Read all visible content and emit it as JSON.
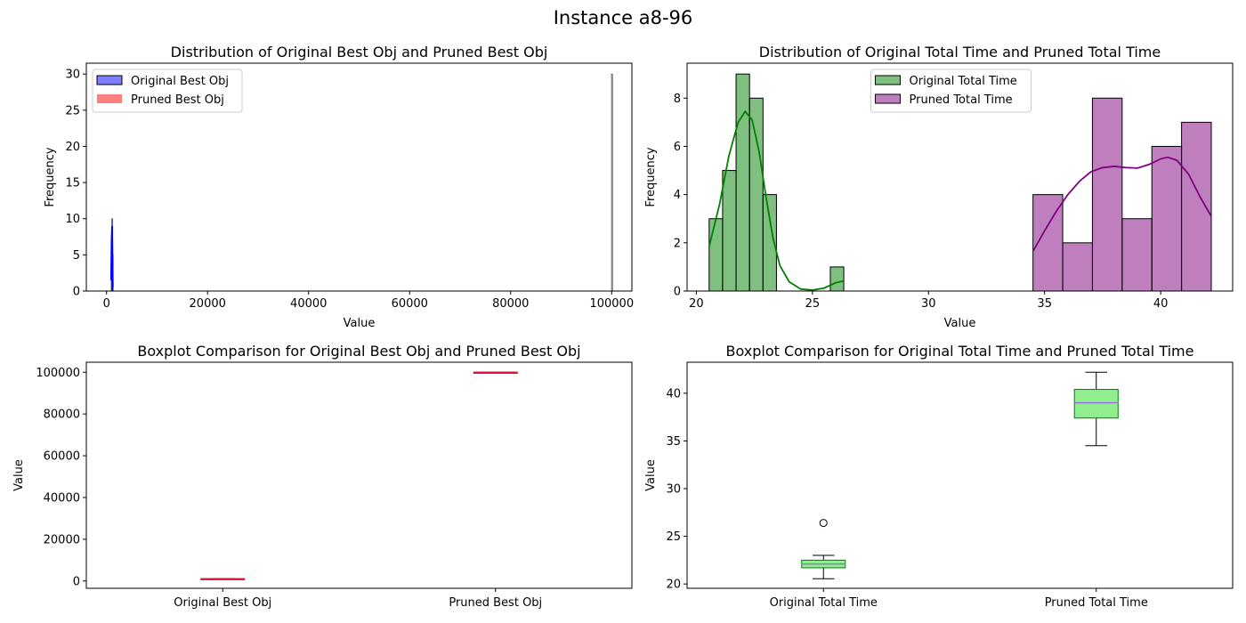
{
  "figure": {
    "title": "Instance a8-96"
  },
  "chart_data": [
    {
      "id": "hist_obj",
      "type": "bar",
      "subtype": "histogram",
      "title": "Distribution of Original Best Obj and Pruned Best Obj",
      "xlabel": "Value",
      "ylabel": "Frequency",
      "xlim": [
        -4000,
        104000
      ],
      "ylim": [
        0,
        31.5
      ],
      "xticks": [
        0,
        20000,
        40000,
        60000,
        80000,
        100000
      ],
      "xtick_labels": [
        "0",
        "20000",
        "40000",
        "60000",
        "80000",
        "100000"
      ],
      "yticks": [
        0,
        5,
        10,
        15,
        20,
        25,
        30
      ],
      "ytick_labels": [
        "0",
        "5",
        "10",
        "15",
        "20",
        "25",
        "30"
      ],
      "legend_position": "upper-left",
      "series": [
        {
          "name": "Original Best Obj",
          "color": "#0000ff",
          "alpha": 0.5,
          "bins": [
            {
              "x0": 920,
              "x1": 1020,
              "count": 7
            },
            {
              "x0": 1020,
              "x1": 1120,
              "count": 10
            },
            {
              "x0": 1120,
              "x1": 1220,
              "count": 5
            }
          ],
          "kde": [
            [
              900,
              1.5
            ],
            [
              1000,
              7
            ],
            [
              1100,
              9
            ],
            [
              1200,
              4
            ],
            [
              1250,
              0.5
            ]
          ]
        },
        {
          "name": "Pruned Best Obj",
          "color": "#ff0000",
          "alpha": 0.5,
          "bins": [
            {
              "x0": 99950,
              "x1": 100050,
              "count": 30
            }
          ],
          "kde": []
        }
      ]
    },
    {
      "id": "hist_time",
      "type": "bar",
      "subtype": "histogram",
      "title": "Distribution of Original Total Time and Pruned Total Time",
      "xlabel": "Value",
      "ylabel": "Frequency",
      "xlim": [
        19.6,
        43.1
      ],
      "ylim": [
        0,
        9.45
      ],
      "xticks": [
        20,
        25,
        30,
        35,
        40
      ],
      "xtick_labels": [
        "20",
        "25",
        "30",
        "35",
        "40"
      ],
      "yticks": [
        0,
        2,
        4,
        6,
        8
      ],
      "ytick_labels": [
        "0",
        "2",
        "4",
        "6",
        "8"
      ],
      "legend_position": "upper-center",
      "series": [
        {
          "name": "Original Total Time",
          "color": "#008000",
          "alpha": 0.5,
          "bins": [
            {
              "x0": 20.55,
              "x1": 21.13,
              "count": 3
            },
            {
              "x0": 21.13,
              "x1": 21.71,
              "count": 5
            },
            {
              "x0": 21.71,
              "x1": 22.29,
              "count": 9
            },
            {
              "x0": 22.29,
              "x1": 22.87,
              "count": 8
            },
            {
              "x0": 22.87,
              "x1": 23.45,
              "count": 4
            },
            {
              "x0": 25.77,
              "x1": 26.35,
              "count": 1
            }
          ],
          "kde": [
            [
              20.55,
              1.85
            ],
            [
              21.0,
              3.6
            ],
            [
              21.4,
              5.6
            ],
            [
              21.8,
              7.0
            ],
            [
              22.1,
              7.45
            ],
            [
              22.4,
              7.1
            ],
            [
              22.7,
              5.8
            ],
            [
              23.0,
              3.9
            ],
            [
              23.3,
              2.2
            ],
            [
              23.6,
              1.05
            ],
            [
              24.0,
              0.38
            ],
            [
              24.5,
              0.08
            ],
            [
              25.0,
              0.04
            ],
            [
              25.5,
              0.12
            ],
            [
              26.0,
              0.34
            ],
            [
              26.35,
              0.42
            ]
          ]
        },
        {
          "name": "Pruned Total Time",
          "color": "#800080",
          "alpha": 0.5,
          "bins": [
            {
              "x0": 34.5,
              "x1": 35.78,
              "count": 4
            },
            {
              "x0": 35.78,
              "x1": 37.06,
              "count": 2
            },
            {
              "x0": 37.06,
              "x1": 38.34,
              "count": 8
            },
            {
              "x0": 38.34,
              "x1": 39.62,
              "count": 3
            },
            {
              "x0": 39.62,
              "x1": 40.9,
              "count": 6
            },
            {
              "x0": 40.9,
              "x1": 42.18,
              "count": 7
            }
          ],
          "kde": [
            [
              34.5,
              1.65
            ],
            [
              35.0,
              2.5
            ],
            [
              35.5,
              3.3
            ],
            [
              36.0,
              4.0
            ],
            [
              36.5,
              4.55
            ],
            [
              37.0,
              4.95
            ],
            [
              37.5,
              5.12
            ],
            [
              38.0,
              5.17
            ],
            [
              38.5,
              5.12
            ],
            [
              39.0,
              5.1
            ],
            [
              39.5,
              5.25
            ],
            [
              40.0,
              5.48
            ],
            [
              40.3,
              5.55
            ],
            [
              40.7,
              5.42
            ],
            [
              41.2,
              4.85
            ],
            [
              41.7,
              3.9
            ],
            [
              42.18,
              3.1
            ]
          ]
        }
      ]
    },
    {
      "id": "box_obj",
      "type": "boxplot",
      "title": "Boxplot Comparison for Original Best Obj and Pruned Best Obj",
      "xlabel": "",
      "ylabel": "Value",
      "ylim": [
        -3500,
        104800
      ],
      "yticks": [
        0,
        20000,
        40000,
        60000,
        80000,
        100000
      ],
      "ytick_labels": [
        "0",
        "20000",
        "40000",
        "60000",
        "80000",
        "100000"
      ],
      "categories": [
        "Original Best Obj",
        "Pruned Best Obj"
      ],
      "box_color": "#90ee90",
      "median_color": "#dc143c",
      "boxes": [
        {
          "whisker_low": 950,
          "q1": 1000,
          "median": 1050,
          "q3": 1100,
          "whisker_high": 1180,
          "outliers": []
        },
        {
          "whisker_low": 100000,
          "q1": 100000,
          "median": 100000,
          "q3": 100000,
          "whisker_high": 100000,
          "outliers": []
        }
      ]
    },
    {
      "id": "box_time",
      "type": "boxplot",
      "title": "Boxplot Comparison for Original Total Time and Pruned Total Time",
      "xlabel": "",
      "ylabel": "Value",
      "ylim": [
        19.55,
        43.25
      ],
      "yticks": [
        20,
        25,
        30,
        35,
        40
      ],
      "ytick_labels": [
        "20",
        "25",
        "30",
        "35",
        "40"
      ],
      "categories": [
        "Original Total Time",
        "Pruned Total Time"
      ],
      "box_color": "#90ee90",
      "median_color": "#9370db",
      "boxes": [
        {
          "whisker_low": 20.55,
          "q1": 21.7,
          "median": 22.1,
          "q3": 22.5,
          "whisker_high": 23.0,
          "outliers": [
            26.4
          ]
        },
        {
          "whisker_low": 34.5,
          "q1": 37.4,
          "median": 39.0,
          "q3": 40.4,
          "whisker_high": 42.2,
          "outliers": []
        }
      ]
    }
  ]
}
